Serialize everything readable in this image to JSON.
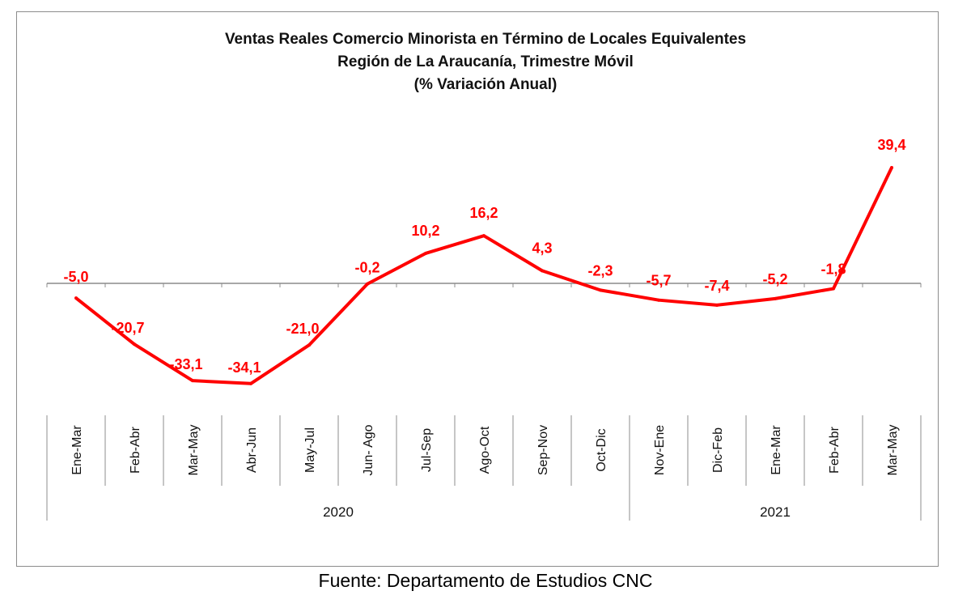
{
  "chart_data": {
    "type": "line",
    "title": [
      "Ventas Reales Comercio Minorista  en Término de Locales Equivalentes",
      "Región de La Araucanía, Trimestre Móvil",
      "(% Variación Anual)"
    ],
    "categories": [
      "Ene-Mar",
      "Feb-Abr",
      "Mar-May",
      "Abr-Jun",
      "May-Jul",
      "Jun- Ago",
      "Jul-Sep",
      "Ago-Oct",
      "Sep-Nov",
      "Oct-Dic",
      "Nov-Ene",
      "Dic-Feb",
      "Ene-Mar",
      "Feb-Abr",
      "Mar-May"
    ],
    "groups": [
      {
        "label": "2020",
        "count": 10
      },
      {
        "label": "2021",
        "count": 5
      }
    ],
    "series": [
      {
        "name": "% Variación Anual",
        "color": "#ff0000",
        "values": [
          -5.0,
          -20.7,
          -33.1,
          -34.1,
          -21.0,
          -0.2,
          10.2,
          16.2,
          4.3,
          -2.3,
          -5.7,
          -7.4,
          -5.2,
          -1.8,
          39.4
        ]
      }
    ],
    "data_labels": [
      "-5,0",
      "-20,7",
      "-33,1",
      "-34,1",
      "-21,0",
      "-0,2",
      "10,2",
      "16,2",
      "4,3",
      "-2,3",
      "-5,7",
      "-7,4",
      "-5,2",
      "-1,8",
      "39,4"
    ],
    "xlabel": "",
    "ylabel": "",
    "grid": false
  },
  "source": "Fuente: Departamento de Estudios CNC"
}
